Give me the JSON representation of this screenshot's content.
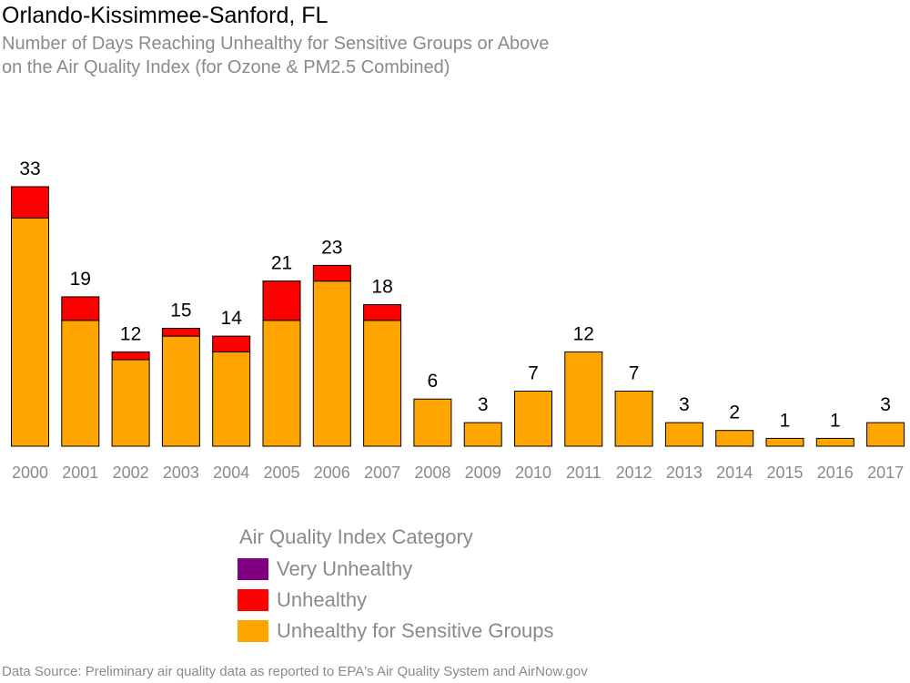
{
  "title": "Orlando-Kissimmee-Sanford, FL",
  "subtitle_line1": "Number of Days Reaching Unhealthy for Sensitive Groups or Above",
  "subtitle_line2": "on the Air Quality Index (for Ozone & PM2.5 Combined)",
  "source": "Data Source: Preliminary air quality data as reported to EPA's Air Quality System and AirNow.gov",
  "legend": {
    "title": "Air Quality Index Category",
    "items": [
      {
        "label": "Very Unhealthy",
        "color": "#800080"
      },
      {
        "label": "Unhealthy",
        "color": "#ff0000"
      },
      {
        "label": "Unhealthy for Sensitive Groups",
        "color": "#ffa500"
      }
    ]
  },
  "chart_data": {
    "type": "bar",
    "stacked": true,
    "categories": [
      "2000",
      "2001",
      "2002",
      "2003",
      "2004",
      "2005",
      "2006",
      "2007",
      "2008",
      "2009",
      "2010",
      "2011",
      "2012",
      "2013",
      "2014",
      "2015",
      "2016",
      "2017"
    ],
    "series": [
      {
        "name": "Unhealthy for Sensitive Groups",
        "color": "#ffa500",
        "values": [
          29,
          16,
          11,
          14,
          12,
          16,
          21,
          16,
          6,
          3,
          7,
          12,
          7,
          3,
          2,
          1,
          1,
          3
        ]
      },
      {
        "name": "Unhealthy",
        "color": "#ff0000",
        "values": [
          4,
          3,
          1,
          1,
          2,
          5,
          2,
          2,
          0,
          0,
          0,
          0,
          0,
          0,
          0,
          0,
          0,
          0
        ]
      },
      {
        "name": "Very Unhealthy",
        "color": "#800080",
        "values": [
          0,
          0,
          0,
          0,
          0,
          0,
          0,
          0,
          0,
          0,
          0,
          0,
          0,
          0,
          0,
          0,
          0,
          0
        ]
      }
    ],
    "totals": [
      33,
      19,
      12,
      15,
      14,
      21,
      23,
      18,
      6,
      3,
      7,
      12,
      7,
      3,
      2,
      1,
      1,
      3
    ],
    "ylim": [
      0,
      33
    ],
    "grid": false
  }
}
